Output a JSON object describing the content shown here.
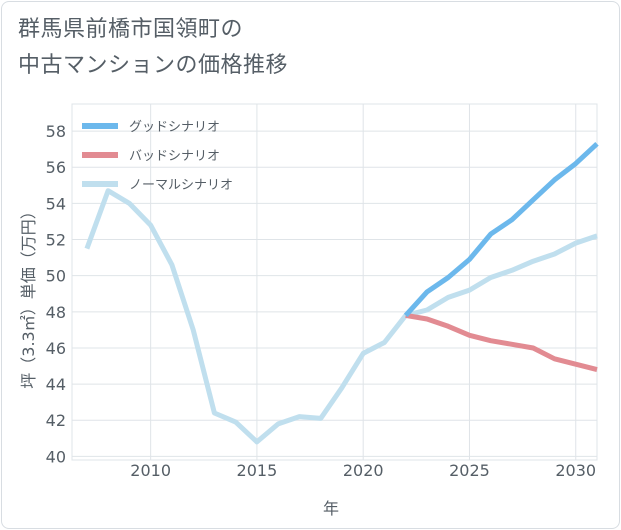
{
  "header": {
    "title_line1": "群馬県前橋市国領町の",
    "title_line2": "中古マンションの価格推移"
  },
  "chart_data": {
    "type": "line",
    "title": "群馬県前橋市国領町の中古マンションの価格推移",
    "xlabel": "年",
    "ylabel": "坪（3.3㎡）単価（万円）",
    "xlim": [
      2006.3,
      2031
    ],
    "ylim": [
      39.8,
      59.5
    ],
    "xticks": [
      2010,
      2015,
      2020,
      2025,
      2030
    ],
    "yticks": [
      40,
      42,
      44,
      46,
      48,
      50,
      52,
      54,
      56,
      58
    ],
    "grid": true,
    "legend_position": "top-left",
    "series": [
      {
        "name": "グッドシナリオ",
        "color": "#6cb8ec",
        "x": [
          2022,
          2023,
          2024,
          2025,
          2026,
          2027,
          2028,
          2029,
          2030,
          2031
        ],
        "values": [
          47.8,
          49.1,
          49.9,
          50.9,
          52.3,
          53.1,
          54.2,
          55.3,
          56.2,
          57.3
        ]
      },
      {
        "name": "バッドシナリオ",
        "color": "#e28b92",
        "x": [
          2022,
          2023,
          2024,
          2025,
          2026,
          2027,
          2028,
          2029,
          2030,
          2031
        ],
        "values": [
          47.8,
          47.6,
          47.2,
          46.7,
          46.4,
          46.2,
          46.0,
          45.4,
          45.1,
          44.8
        ]
      },
      {
        "name": "ノーマルシナリオ",
        "color": "#c0dfee",
        "x": [
          2007,
          2008,
          2009,
          2010,
          2011,
          2012,
          2013,
          2014,
          2015,
          2016,
          2017,
          2018,
          2019,
          2020,
          2021,
          2022,
          2023,
          2024,
          2025,
          2026,
          2027,
          2028,
          2029,
          2030,
          2031
        ],
        "values": [
          51.5,
          54.7,
          54.0,
          52.8,
          50.6,
          47.0,
          42.4,
          41.9,
          40.8,
          41.8,
          42.2,
          42.1,
          43.8,
          45.7,
          46.3,
          47.8,
          48.1,
          48.8,
          49.2,
          49.9,
          50.3,
          50.8,
          51.2,
          51.8,
          52.2
        ]
      }
    ]
  }
}
